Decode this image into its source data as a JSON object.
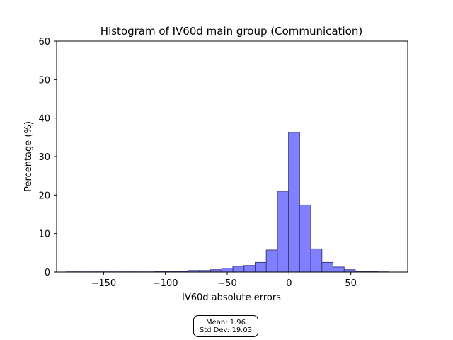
{
  "chart_data": {
    "type": "bar",
    "title": "Histogram of IV60d main group (Communication)",
    "xlabel": "IV60d absolute errors",
    "ylabel": "Percentage (%)",
    "xlim": [
      -188,
      96
    ],
    "ylim": [
      0,
      60
    ],
    "xticks": [
      -150,
      -100,
      -50,
      0,
      50
    ],
    "xtick_labels": [
      "−150",
      "−100",
      "−50",
      "0",
      "50"
    ],
    "yticks": [
      0,
      10,
      20,
      30,
      40,
      50,
      60
    ],
    "bin_edges": [
      -180.4,
      -171.4,
      -162.4,
      -153.4,
      -144.4,
      -135.4,
      -126.4,
      -117.4,
      -108.4,
      -99.4,
      -90.4,
      -81.4,
      -72.4,
      -63.4,
      -54.4,
      -45.4,
      -36.4,
      -27.4,
      -18.4,
      -9.4,
      -0.4,
      8.6,
      17.6,
      26.6,
      35.6,
      44.6,
      53.6,
      62.6,
      71.6,
      80.6
    ],
    "values": [
      0.05,
      0.05,
      0.05,
      0.05,
      0.05,
      0.05,
      0.05,
      0.05,
      0.2,
      0.2,
      0.2,
      0.4,
      0.4,
      0.6,
      1.0,
      1.5,
      1.7,
      2.5,
      5.7,
      21.0,
      36.3,
      17.4,
      6.0,
      2.5,
      1.3,
      0.6,
      0.2,
      0.2,
      0.05
    ],
    "bar_color": "#8080ff",
    "edge_color": "#3a3a80",
    "grid": false,
    "stats": {
      "mean": "Mean: 1.96",
      "std": "Std Dev: 19.03"
    }
  }
}
